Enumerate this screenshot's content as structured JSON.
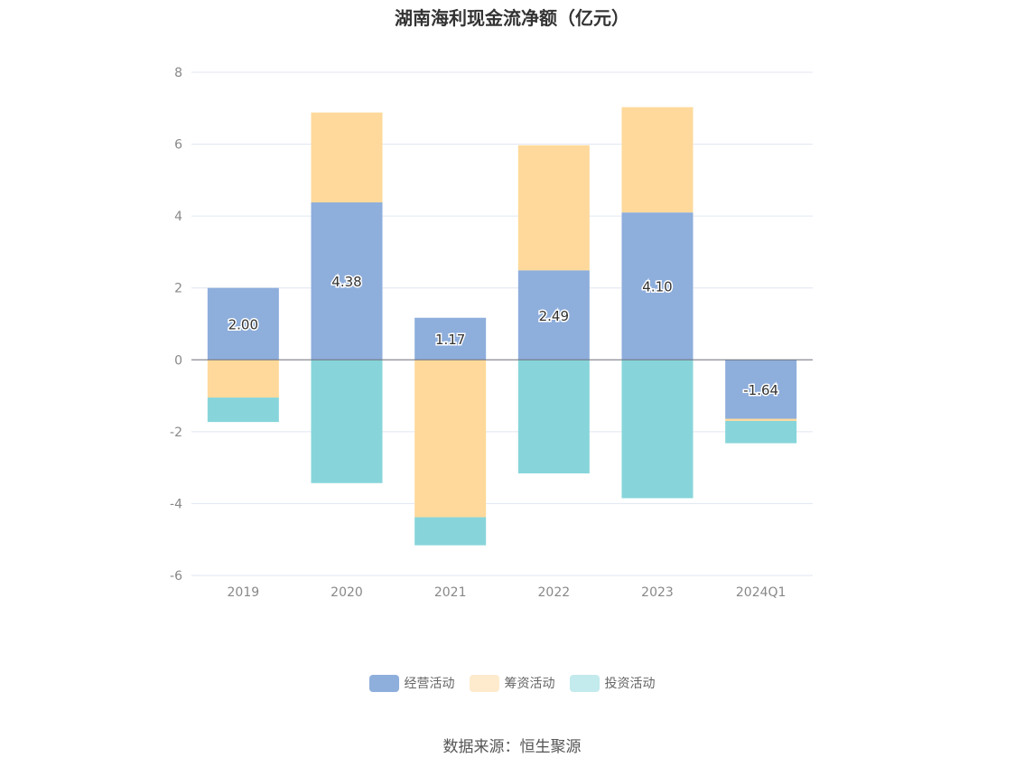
{
  "chart_data": {
    "type": "bar",
    "stacked": true,
    "title": "湖南海利现金流净额（亿元）",
    "categories": [
      "2019",
      "2020",
      "2021",
      "2022",
      "2023",
      "2024Q1"
    ],
    "series": [
      {
        "name": "经营活动",
        "color": "#8eaedc",
        "values": [
          2.0,
          4.38,
          1.17,
          2.49,
          4.1,
          -1.64
        ],
        "labels": [
          "2.00",
          "4.38",
          "1.17",
          "2.49",
          "4.10",
          "-1.64"
        ]
      },
      {
        "name": "筹资活动",
        "color": "#fed99b",
        "legend_color": "#feebcd",
        "values": [
          -1.05,
          2.5,
          -4.38,
          3.48,
          2.93,
          -0.06
        ]
      },
      {
        "name": "投资活动",
        "color": "#87d5da",
        "legend_color": "#c3eaed",
        "values": [
          -0.68,
          -3.43,
          -0.78,
          -3.16,
          -3.85,
          -0.62
        ]
      }
    ],
    "ylim": [
      -6,
      8
    ],
    "yticks": [
      -6,
      -4,
      -2,
      0,
      2,
      4,
      6,
      8
    ],
    "grid": true,
    "legend_position": "bottom"
  },
  "source": "数据来源：恒生聚源"
}
